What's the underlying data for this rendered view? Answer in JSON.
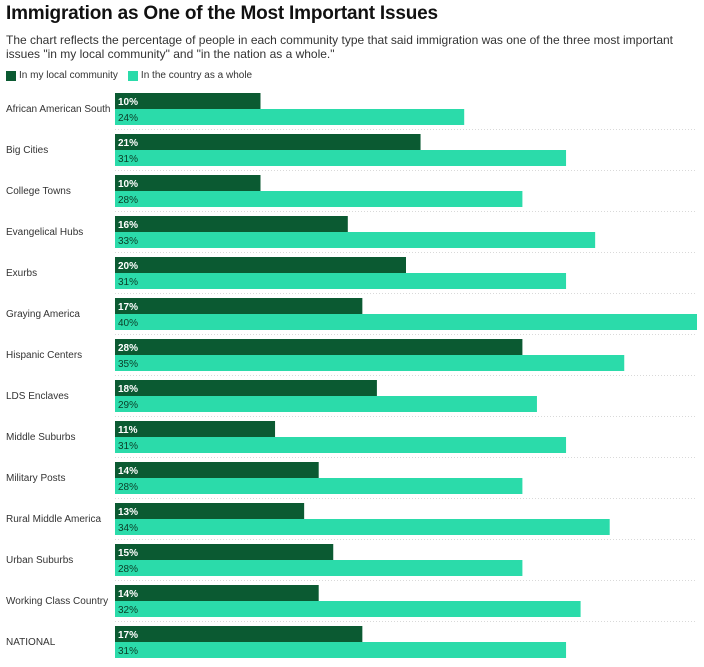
{
  "title": "Immigration as One of the Most Important Issues",
  "subtitle": "The chart reflects the percentage of people in each community type that said immigration was one of the three most important issues \"in my local community\" and \"in the nation as a whole.\"",
  "colors": {
    "local": "#0b5a32",
    "country": "#2bdbaa",
    "local_text": "#ffffff",
    "country_text": "#0b3d27",
    "gridline": "#d9d9d9"
  },
  "chart_data": {
    "type": "bar",
    "orientation": "horizontal",
    "title": "Immigration as One of the Most Important Issues",
    "xlabel": "",
    "ylabel": "",
    "xlim": [
      0,
      40
    ],
    "legend_position": "top-left",
    "categories": [
      "African American South",
      "Big Cities",
      "College Towns",
      "Evangelical Hubs",
      "Exurbs",
      "Graying America",
      "Hispanic Centers",
      "LDS Enclaves",
      "Middle Suburbs",
      "Military Posts",
      "Rural Middle America",
      "Urban Suburbs",
      "Working Class Country",
      "NATIONAL"
    ],
    "series": [
      {
        "name": "In my local community",
        "values": [
          10,
          21,
          10,
          16,
          20,
          17,
          28,
          18,
          11,
          14,
          13,
          15,
          14,
          17
        ]
      },
      {
        "name": "In the country as a whole",
        "values": [
          24,
          31,
          28,
          33,
          31,
          40,
          35,
          29,
          31,
          28,
          34,
          28,
          32,
          31
        ]
      }
    ],
    "value_suffix": "%"
  }
}
